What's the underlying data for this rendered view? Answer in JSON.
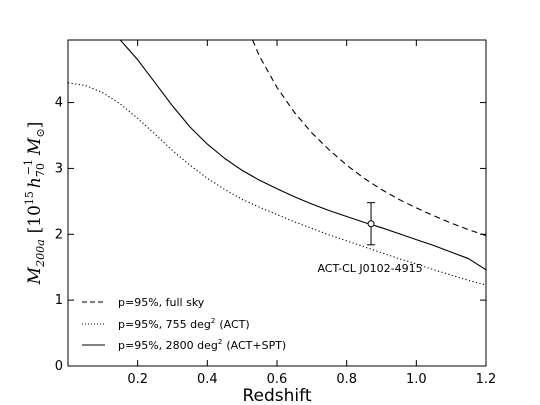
{
  "chart_data": {
    "type": "line",
    "xlabel": "Redshift",
    "ylabel": {
      "base": "M",
      "base_sub": "200a",
      "open": "[10",
      "exp15": "15",
      "h": "h",
      "h_sub": "70",
      "h_sup": "−1",
      "m2": "M",
      "m2_sub": "⊙",
      "close": "]"
    },
    "xlim": [
      0.0,
      1.2
    ],
    "ylim": [
      0,
      4.95
    ],
    "xticks": [
      0.2,
      0.4,
      0.6,
      0.8,
      1.0,
      1.2
    ],
    "xtick_labels": [
      "0.2",
      "0.4",
      "0.6",
      "0.8",
      "1.0",
      "1.2"
    ],
    "yticks": [
      0,
      1,
      2,
      3,
      4
    ],
    "ytick_labels": [
      "0",
      "1",
      "2",
      "3",
      "4"
    ],
    "grid": false,
    "legend_position": "bottom-left",
    "series": [
      {
        "name": "p=95%, full sky",
        "style": "dashed",
        "x": [
          0.53,
          0.55,
          0.6,
          0.65,
          0.7,
          0.75,
          0.8,
          0.85,
          0.9,
          0.95,
          1.0,
          1.05,
          1.1,
          1.15,
          1.2
        ],
        "y": [
          4.95,
          4.7,
          4.23,
          3.85,
          3.54,
          3.28,
          3.05,
          2.85,
          2.68,
          2.53,
          2.4,
          2.28,
          2.17,
          2.07,
          1.98
        ]
      },
      {
        "name": "p=95%, 755 deg",
        "name_sup": "2",
        "name_suffix": "(ACT)",
        "style": "dotted",
        "x": [
          0.0,
          0.05,
          0.1,
          0.15,
          0.2,
          0.25,
          0.3,
          0.35,
          0.4,
          0.45,
          0.5,
          0.55,
          0.6,
          0.65,
          0.7,
          0.75,
          0.8,
          0.85,
          0.9,
          0.95,
          1.0,
          1.05,
          1.1,
          1.15,
          1.2
        ],
        "y": [
          4.3,
          4.26,
          4.15,
          3.98,
          3.76,
          3.52,
          3.27,
          3.05,
          2.85,
          2.68,
          2.53,
          2.41,
          2.3,
          2.19,
          2.09,
          1.99,
          1.9,
          1.81,
          1.72,
          1.63,
          1.55,
          1.46,
          1.38,
          1.3,
          1.23
        ]
      },
      {
        "name": "p=95%, 2800 deg",
        "name_sup": "2",
        "name_suffix": "(ACT+SPT)",
        "style": "solid",
        "x": [
          0.15,
          0.2,
          0.25,
          0.3,
          0.35,
          0.4,
          0.45,
          0.5,
          0.55,
          0.6,
          0.65,
          0.7,
          0.75,
          0.8,
          0.85,
          0.9,
          0.95,
          1.0,
          1.05,
          1.1,
          1.15,
          1.2
        ],
        "y": [
          4.95,
          4.65,
          4.3,
          3.95,
          3.63,
          3.37,
          3.15,
          2.97,
          2.82,
          2.69,
          2.57,
          2.46,
          2.36,
          2.27,
          2.18,
          2.1,
          2.01,
          1.92,
          1.83,
          1.73,
          1.63,
          1.46
        ]
      }
    ],
    "points": [
      {
        "label": "ACT-CL J0102-4915",
        "x": 0.87,
        "y": 2.16,
        "yerr_low": 1.84,
        "yerr_high": 2.48
      }
    ]
  }
}
